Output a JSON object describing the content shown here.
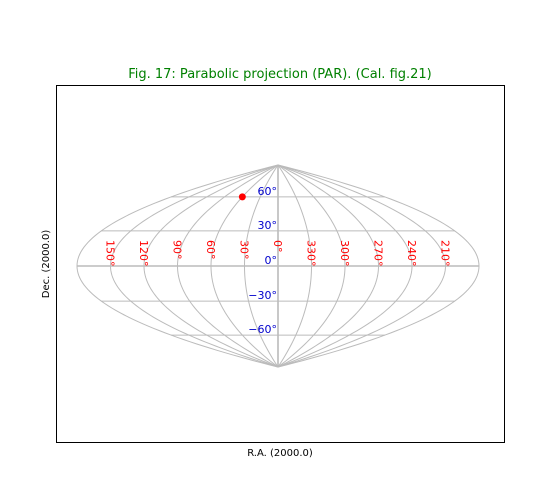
{
  "chart_data": {
    "type": "scatter",
    "projection": "PAR",
    "title": "Fig. 17: Parabolic projection (PAR). (Cal. fig.21)",
    "title_color": "#008000",
    "xlabel": "R.A. (2000.0)",
    "ylabel": "Dec. (2000.0)",
    "graticule_color": "#bbbbbb",
    "ra_label_color": "#ff0000",
    "dec_label_color": "#0000cc",
    "marker_color": "#ff0000",
    "ra_lines": [
      -180,
      -150,
      -120,
      -90,
      -60,
      -30,
      0,
      30,
      60,
      90,
      120,
      150,
      180
    ],
    "dec_lines": [
      -60,
      -30,
      0,
      30,
      60
    ],
    "ra_tick_values": [
      150,
      120,
      90,
      60,
      30,
      0,
      330,
      300,
      270,
      240,
      210
    ],
    "ra_tick_labels": [
      "150°",
      "120°",
      "90°",
      "60°",
      "30°",
      "0°",
      "330°",
      "300°",
      "270°",
      "240°",
      "210°"
    ],
    "dec_tick_values": [
      60,
      30,
      0,
      -30,
      -60
    ],
    "dec_tick_labels": [
      "60°",
      "30°",
      "0°",
      "−30°",
      "−60°"
    ],
    "markers": [
      {
        "ra": 60,
        "dec": 60
      }
    ]
  }
}
